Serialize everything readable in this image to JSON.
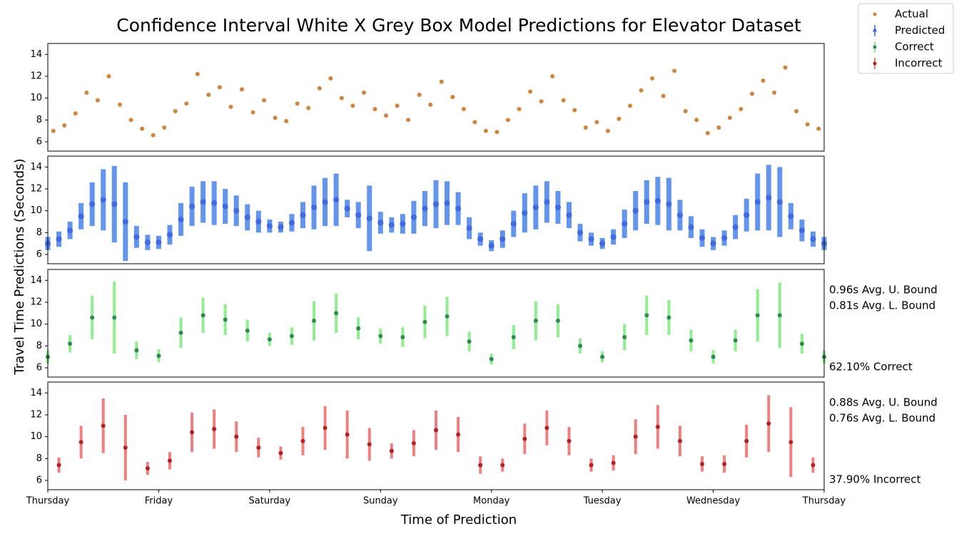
{
  "figure": {
    "title": "Confidence Interval White X Grey Box Model Predictions for Elevator Dataset",
    "xlabel": "Time of Prediction",
    "ylabel": "Travel Time Predictions (Seconds)",
    "legend_loc": "upper right"
  },
  "chart_data": [
    {
      "type": "scatter",
      "xlim": [
        0,
        7
      ],
      "ylim": [
        5.15,
        15
      ],
      "yticks": [
        6,
        8,
        10,
        12,
        14
      ],
      "x": [
        0.05,
        0.15,
        0.25,
        0.35,
        0.45,
        0.55,
        0.65,
        0.75,
        0.85,
        0.95,
        1.05,
        1.15,
        1.25,
        1.35,
        1.45,
        1.55,
        1.65,
        1.75,
        1.85,
        1.95,
        2.05,
        2.15,
        2.25,
        2.35,
        2.45,
        2.55,
        2.65,
        2.75,
        2.85,
        2.95,
        3.05,
        3.15,
        3.25,
        3.35,
        3.45,
        3.55,
        3.65,
        3.75,
        3.85,
        3.95,
        4.05,
        4.15,
        4.25,
        4.35,
        4.45,
        4.55,
        4.65,
        4.75,
        4.85,
        4.95,
        5.05,
        5.15,
        5.25,
        5.35,
        5.45,
        5.55,
        5.65,
        5.75,
        5.85,
        5.95,
        6.05,
        6.15,
        6.25,
        6.35,
        6.45,
        6.55,
        6.65,
        6.75,
        6.85,
        6.95
      ],
      "series": [
        {
          "name": "Actual",
          "color": "#cd853f",
          "values": [
            7.0,
            7.5,
            8.6,
            10.5,
            9.8,
            12.0,
            9.4,
            8.0,
            7.2,
            6.6,
            7.3,
            8.8,
            9.5,
            12.2,
            10.3,
            11.0,
            9.2,
            10.8,
            8.7,
            9.8,
            8.2,
            7.9,
            9.5,
            9.1,
            10.9,
            11.8,
            10.0,
            9.3,
            10.5,
            9.0,
            8.4,
            9.3,
            8.0,
            10.3,
            9.4,
            11.5,
            10.1,
            9.0,
            7.8,
            7.0,
            6.9,
            8.0,
            9.0,
            10.6,
            9.7,
            12.0,
            9.8,
            8.9,
            7.3,
            7.8,
            7.0,
            8.1,
            9.3,
            10.7,
            11.8,
            10.2,
            12.5,
            8.8,
            8.0,
            6.8,
            7.3,
            8.2,
            9.0,
            10.4,
            11.6,
            10.5,
            12.8,
            8.8,
            7.6,
            7.2
          ]
        }
      ]
    },
    {
      "type": "errorbar",
      "xlim": [
        0,
        7
      ],
      "ylim": [
        5.15,
        15
      ],
      "yticks": [
        6,
        8,
        10,
        12,
        14
      ],
      "x": [
        0,
        0.1,
        0.2,
        0.3,
        0.4,
        0.5,
        0.6,
        0.7,
        0.8,
        0.9,
        1,
        1.1,
        1.2,
        1.3,
        1.4,
        1.5,
        1.6,
        1.7,
        1.8,
        1.9,
        2,
        2.1,
        2.2,
        2.3,
        2.4,
        2.5,
        2.6,
        2.7,
        2.8,
        2.9,
        3,
        3.1,
        3.2,
        3.3,
        3.4,
        3.5,
        3.6,
        3.7,
        3.8,
        3.9,
        4,
        4.1,
        4.2,
        4.3,
        4.4,
        4.5,
        4.6,
        4.7,
        4.8,
        4.9,
        5,
        5.1,
        5.2,
        5.3,
        5.4,
        5.5,
        5.6,
        5.7,
        5.8,
        5.9,
        6,
        6.1,
        6.2,
        6.3,
        6.4,
        6.5,
        6.6,
        6.7,
        6.8,
        6.9,
        7
      ],
      "series": [
        {
          "name": "Predicted",
          "color": "#4169e1",
          "bar_color": "#6495ed",
          "values": [
            7.0,
            7.4,
            8.2,
            9.5,
            10.6,
            11.0,
            10.6,
            9.0,
            7.6,
            7.1,
            7.1,
            7.8,
            9.2,
            10.4,
            10.8,
            10.7,
            10.4,
            10.0,
            9.4,
            9.0,
            8.6,
            8.5,
            8.9,
            9.6,
            10.3,
            10.8,
            11.0,
            10.2,
            9.6,
            9.3,
            8.9,
            8.7,
            8.8,
            9.4,
            10.2,
            10.6,
            10.7,
            10.2,
            8.4,
            7.4,
            6.8,
            7.4,
            8.8,
            9.8,
            10.3,
            10.8,
            10.3,
            9.6,
            8.0,
            7.4,
            7.0,
            7.6,
            8.8,
            10.0,
            10.8,
            10.9,
            10.6,
            9.6,
            8.5,
            7.5,
            7.0,
            7.5,
            8.5,
            9.6,
            10.8,
            11.2,
            10.8,
            9.5,
            8.2,
            7.4,
            7.0
          ],
          "errors": [
            0.6,
            0.7,
            0.8,
            1.2,
            2.0,
            2.8,
            3.5,
            3.6,
            1.0,
            0.7,
            0.6,
            0.9,
            1.5,
            1.8,
            1.9,
            2.0,
            1.6,
            1.4,
            1.2,
            1.0,
            0.6,
            0.5,
            0.8,
            1.2,
            2.0,
            2.2,
            2.4,
            0.8,
            1.2,
            3.0,
            1.0,
            0.7,
            0.9,
            1.5,
            1.6,
            2.2,
            2.0,
            1.5,
            1.0,
            0.6,
            0.5,
            0.8,
            1.2,
            1.8,
            2.0,
            1.9,
            1.5,
            1.2,
            0.8,
            0.6,
            0.5,
            0.7,
            1.3,
            1.8,
            2.0,
            2.2,
            2.4,
            1.4,
            1.0,
            0.8,
            0.6,
            0.7,
            1.1,
            1.5,
            2.6,
            3.0,
            3.2,
            1.2,
            1.0,
            0.7,
            0.6
          ]
        }
      ]
    },
    {
      "type": "errorbar",
      "xlim": [
        0,
        7
      ],
      "ylim": [
        5.15,
        15
      ],
      "yticks": [
        6,
        8,
        10,
        12,
        14
      ],
      "x": [
        0,
        0.2,
        0.4,
        0.6,
        0.8,
        1,
        1.2,
        1.4,
        1.6,
        1.8,
        2,
        2.2,
        2.4,
        2.6,
        2.8,
        3,
        3.2,
        3.4,
        3.6,
        3.8,
        4,
        4.2,
        4.4,
        4.6,
        4.8,
        5,
        5.2,
        5.4,
        5.6,
        5.8,
        6,
        6.2,
        6.4,
        6.6,
        6.8,
        7
      ],
      "series": [
        {
          "name": "Correct",
          "color": "#2e8b57",
          "bar_color": "#90ee90",
          "values": [
            7.0,
            8.2,
            10.6,
            10.6,
            7.6,
            7.1,
            9.2,
            10.8,
            10.4,
            9.4,
            8.6,
            8.9,
            10.3,
            11.0,
            9.6,
            8.9,
            8.8,
            10.2,
            10.7,
            8.4,
            6.8,
            8.8,
            10.3,
            10.3,
            8.0,
            7.0,
            8.8,
            10.8,
            10.6,
            8.5,
            7.0,
            8.5,
            10.8,
            10.8,
            8.2,
            7.0
          ],
          "errors": [
            0.6,
            0.8,
            2.0,
            3.3,
            0.8,
            0.6,
            1.4,
            1.6,
            1.4,
            1.0,
            0.6,
            0.8,
            1.8,
            1.8,
            1.0,
            0.7,
            0.9,
            1.5,
            1.8,
            0.9,
            0.5,
            1.1,
            1.8,
            1.5,
            0.7,
            0.5,
            1.2,
            1.8,
            1.6,
            1.0,
            0.6,
            1.0,
            2.4,
            3.0,
            0.9,
            0.6
          ]
        }
      ],
      "annotations": [
        "0.96s Avg. U. Bound",
        "0.81s Avg. L. Bound",
        "62.10% Correct"
      ]
    },
    {
      "type": "errorbar",
      "xlim": [
        0,
        7
      ],
      "ylim": [
        5.15,
        15
      ],
      "yticks": [
        6,
        8,
        10,
        12,
        14
      ],
      "xticks": [
        {
          "value": 0,
          "label": "Thursday"
        },
        {
          "value": 1,
          "label": "Friday"
        },
        {
          "value": 2,
          "label": "Saturday"
        },
        {
          "value": 3,
          "label": "Sunday"
        },
        {
          "value": 4,
          "label": "Monday"
        },
        {
          "value": 5,
          "label": "Tuesday"
        },
        {
          "value": 6,
          "label": "Wednesday"
        },
        {
          "value": 7,
          "label": "Thursday"
        }
      ],
      "x": [
        0.1,
        0.3,
        0.5,
        0.7,
        0.9,
        1.1,
        1.3,
        1.5,
        1.7,
        1.9,
        2.1,
        2.3,
        2.5,
        2.7,
        2.9,
        3.1,
        3.3,
        3.5,
        3.7,
        3.9,
        4.1,
        4.3,
        4.5,
        4.7,
        4.9,
        5.1,
        5.3,
        5.5,
        5.7,
        5.9,
        6.1,
        6.3,
        6.5,
        6.7,
        6.9
      ],
      "series": [
        {
          "name": "Incorrect",
          "color": "#b22222",
          "bar_color": "#f08080",
          "values": [
            7.4,
            9.5,
            11.0,
            9.0,
            7.1,
            7.8,
            10.4,
            10.7,
            10.0,
            9.0,
            8.5,
            9.6,
            10.8,
            10.2,
            9.3,
            8.7,
            9.4,
            10.6,
            10.2,
            7.4,
            7.4,
            9.8,
            10.8,
            9.6,
            7.4,
            7.6,
            10.0,
            10.9,
            9.6,
            7.5,
            7.5,
            9.6,
            11.2,
            9.5,
            7.4
          ],
          "errors": [
            0.7,
            1.5,
            2.5,
            3.0,
            0.6,
            0.8,
            1.8,
            1.8,
            1.4,
            0.9,
            0.6,
            1.3,
            2.0,
            2.2,
            1.5,
            0.7,
            1.2,
            1.8,
            1.6,
            0.8,
            0.6,
            1.4,
            1.6,
            1.3,
            0.6,
            0.7,
            1.6,
            2.0,
            1.4,
            0.7,
            0.8,
            1.5,
            2.6,
            3.2,
            0.7
          ]
        }
      ],
      "annotations": [
        "0.88s Avg. U. Bound",
        "0.76s Avg. L. Bound",
        "37.90% Incorrect"
      ]
    }
  ]
}
